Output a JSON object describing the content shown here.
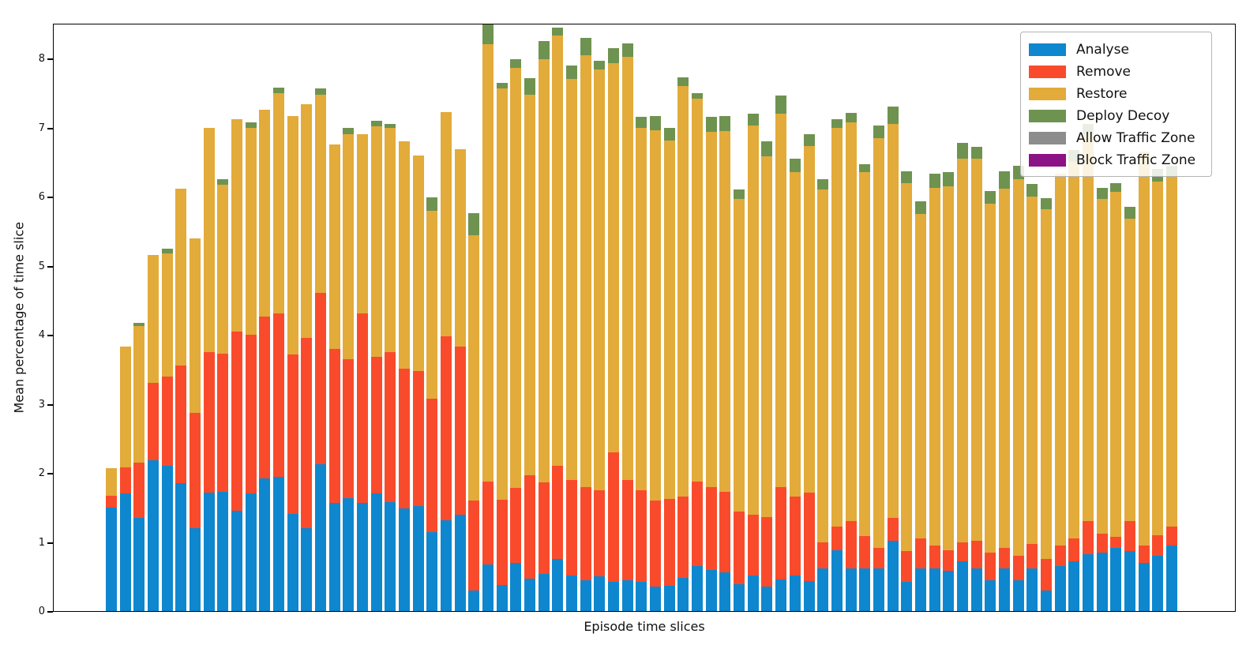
{
  "axes": {
    "xlabel": "Episode time slices",
    "ylabel": "Mean percentage of time slice",
    "y_ticks": [
      {
        "label": "0",
        "value": 0
      },
      {
        "label": "1",
        "value": 1
      },
      {
        "label": "2",
        "value": 2
      },
      {
        "label": "3",
        "value": 3
      },
      {
        "label": "4",
        "value": 4
      },
      {
        "label": "5",
        "value": 5
      },
      {
        "label": "6",
        "value": 6
      },
      {
        "label": "7",
        "value": 7
      },
      {
        "label": "8",
        "value": 8
      }
    ],
    "x_tick_labels_visible": false
  },
  "legend": {
    "entries": [
      {
        "label": "Analyse",
        "color": "#0e87cf"
      },
      {
        "label": "Remove",
        "color": "#f94b2c"
      },
      {
        "label": "Restore",
        "color": "#e2ab3a"
      },
      {
        "label": "Deploy Decoy",
        "color": "#6e9350"
      },
      {
        "label": "Allow Traffic Zone",
        "color": "#8d8d8d"
      },
      {
        "label": "Block Traffic Zone",
        "color": "#8c1385"
      }
    ]
  },
  "chart_data": {
    "type": "bar",
    "stacked": true,
    "title": "",
    "xlabel": "Episode time slices",
    "ylabel": "Mean percentage of time slice",
    "ylim": [
      0,
      8.5
    ],
    "n_bars": 77,
    "grid": false,
    "legend_position": "upper right",
    "series": [
      {
        "name": "Analyse",
        "color": "#0e87cf",
        "values": [
          1.5,
          1.7,
          1.35,
          2.18,
          2.1,
          1.85,
          1.2,
          1.72,
          1.73,
          1.45,
          1.7,
          1.92,
          1.94,
          1.41,
          1.2,
          2.13,
          1.57,
          1.63,
          1.57,
          1.7,
          1.58,
          1.49,
          1.52,
          1.14,
          1.31,
          1.4,
          0.3,
          0.67,
          0.38,
          0.7,
          0.47,
          0.54,
          0.75,
          0.52,
          0.45,
          0.5,
          0.42,
          0.45,
          0.42,
          0.35,
          0.37,
          0.48,
          0.65,
          0.6,
          0.56,
          0.39,
          0.52,
          0.35,
          0.46,
          0.52,
          0.43,
          0.62,
          0.88,
          0.62,
          0.62,
          0.62,
          1.02,
          0.42,
          0.62,
          0.62,
          0.58,
          0.72,
          0.62,
          0.45,
          0.62,
          0.45,
          0.62,
          0.3,
          0.65,
          0.72,
          0.82,
          0.85,
          0.92,
          0.87,
          0.7,
          0.8,
          0.95
        ]
      },
      {
        "name": "Remove",
        "color": "#f94b2c",
        "values": [
          0.17,
          0.38,
          0.8,
          1.12,
          1.3,
          1.7,
          1.67,
          2.03,
          2.0,
          2.6,
          2.3,
          2.34,
          2.37,
          2.31,
          2.76,
          2.48,
          2.22,
          2.02,
          2.74,
          1.98,
          2.17,
          2.02,
          1.95,
          1.93,
          2.67,
          2.43,
          1.3,
          1.2,
          1.23,
          1.08,
          1.5,
          1.32,
          1.35,
          1.38,
          1.35,
          1.25,
          1.88,
          1.45,
          1.33,
          1.25,
          1.25,
          1.18,
          1.23,
          1.2,
          1.17,
          1.05,
          0.88,
          1.01,
          1.34,
          1.14,
          1.29,
          0.38,
          0.34,
          0.68,
          0.47,
          0.3,
          0.33,
          0.45,
          0.43,
          0.33,
          0.3,
          0.28,
          0.4,
          0.4,
          0.3,
          0.35,
          0.35,
          0.45,
          0.3,
          0.33,
          0.48,
          0.27,
          0.15,
          0.43,
          0.25,
          0.3,
          0.27
        ]
      },
      {
        "name": "Restore",
        "color": "#e2ab3a",
        "values": [
          0.4,
          1.75,
          1.98,
          1.85,
          1.78,
          2.56,
          2.53,
          3.25,
          2.44,
          3.07,
          3.0,
          3.0,
          3.19,
          3.45,
          3.38,
          2.86,
          2.96,
          3.25,
          2.59,
          3.34,
          3.24,
          3.29,
          3.12,
          2.73,
          3.24,
          2.86,
          3.84,
          6.34,
          5.96,
          6.08,
          5.5,
          6.13,
          6.23,
          5.8,
          6.25,
          6.09,
          5.63,
          6.12,
          5.24,
          5.36,
          5.19,
          5.94,
          5.54,
          5.14,
          5.22,
          4.53,
          5.63,
          5.22,
          5.4,
          4.69,
          5.01,
          5.1,
          5.78,
          5.78,
          5.26,
          5.93,
          5.7,
          5.33,
          4.7,
          5.18,
          5.27,
          5.55,
          5.53,
          5.05,
          5.2,
          5.45,
          5.03,
          5.07,
          5.38,
          5.45,
          5.6,
          4.85,
          5.0,
          4.38,
          5.7,
          5.12,
          5.08
        ]
      },
      {
        "name": "Deploy Decoy",
        "color": "#6e9350",
        "values": [
          0,
          0,
          0.04,
          0,
          0.07,
          0,
          0,
          0,
          0.08,
          0,
          0.08,
          0,
          0.08,
          0,
          0,
          0.1,
          0,
          0.09,
          0,
          0.08,
          0.06,
          0,
          0,
          0.19,
          0,
          0,
          0.32,
          0.34,
          0.08,
          0.13,
          0.24,
          0.26,
          0.12,
          0.2,
          0.25,
          0.13,
          0.22,
          0.2,
          0.16,
          0.21,
          0.19,
          0.13,
          0.08,
          0.22,
          0.22,
          0.13,
          0.17,
          0.22,
          0.26,
          0.2,
          0.17,
          0.15,
          0.12,
          0.13,
          0.12,
          0.18,
          0.25,
          0.17,
          0.18,
          0.2,
          0.2,
          0.23,
          0.17,
          0.18,
          0.25,
          0.2,
          0.18,
          0.16,
          0,
          0.18,
          0.15,
          0.16,
          0.13,
          0.17,
          0,
          0.18,
          0.15
        ]
      },
      {
        "name": "Allow Traffic Zone",
        "color": "#8d8d8d",
        "values": [
          0,
          0,
          0,
          0,
          0,
          0,
          0,
          0,
          0,
          0,
          0,
          0,
          0,
          0,
          0,
          0,
          0,
          0,
          0,
          0,
          0,
          0,
          0,
          0,
          0,
          0,
          0,
          0,
          0,
          0,
          0,
          0,
          0,
          0,
          0,
          0,
          0,
          0,
          0,
          0,
          0,
          0,
          0,
          0,
          0,
          0,
          0,
          0,
          0,
          0,
          0,
          0,
          0,
          0,
          0,
          0,
          0,
          0,
          0,
          0,
          0,
          0,
          0,
          0,
          0,
          0,
          0,
          0,
          0,
          0,
          0,
          0,
          0,
          0,
          0,
          0,
          0
        ]
      },
      {
        "name": "Block Traffic Zone",
        "color": "#8c1385",
        "values": [
          0,
          0,
          0,
          0,
          0,
          0,
          0,
          0,
          0,
          0,
          0,
          0,
          0,
          0,
          0,
          0,
          0,
          0,
          0,
          0,
          0,
          0,
          0,
          0,
          0,
          0,
          0,
          0,
          0,
          0,
          0,
          0,
          0,
          0,
          0,
          0,
          0,
          0,
          0,
          0,
          0,
          0,
          0,
          0,
          0,
          0,
          0,
          0,
          0,
          0,
          0,
          0,
          0,
          0,
          0,
          0,
          0,
          0,
          0,
          0,
          0,
          0,
          0,
          0,
          0,
          0,
          0,
          0,
          0,
          0,
          0,
          0,
          0,
          0,
          0,
          0,
          0
        ]
      }
    ]
  }
}
